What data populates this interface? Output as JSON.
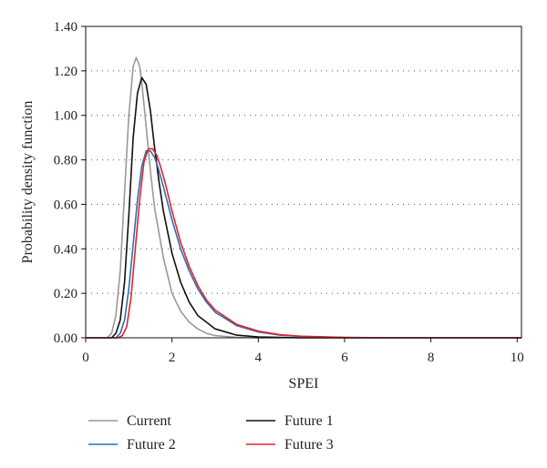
{
  "chart_data": {
    "type": "line",
    "title": "",
    "xlabel": "SPEI",
    "ylabel": "Probability density function",
    "xlim": [
      0,
      10.1
    ],
    "ylim": [
      0,
      1.4
    ],
    "x_ticks": [
      0,
      2,
      4,
      6,
      8,
      10
    ],
    "x_tick_labels": [
      "0",
      "2",
      "4",
      "6",
      "8",
      "10"
    ],
    "y_ticks": [
      0,
      0.2,
      0.4,
      0.6,
      0.8,
      1.0,
      1.2,
      1.4
    ],
    "y_tick_labels": [
      "0.00",
      "0.20",
      "0.40",
      "0.60",
      "0.80",
      "1.00",
      "1.20",
      "1.40"
    ],
    "grid": "horizontal dotted",
    "legend_position": "bottom",
    "series": [
      {
        "name": "Current",
        "color": "#999999",
        "points": [
          [
            0,
            0
          ],
          [
            0.5,
            0
          ],
          [
            0.6,
            0.02
          ],
          [
            0.7,
            0.1
          ],
          [
            0.8,
            0.3
          ],
          [
            0.9,
            0.65
          ],
          [
            1.0,
            1.0
          ],
          [
            1.1,
            1.22
          ],
          [
            1.17,
            1.26
          ],
          [
            1.25,
            1.22
          ],
          [
            1.3,
            1.15
          ],
          [
            1.4,
            0.95
          ],
          [
            1.5,
            0.75
          ],
          [
            1.6,
            0.58
          ],
          [
            1.8,
            0.36
          ],
          [
            2.0,
            0.2
          ],
          [
            2.2,
            0.12
          ],
          [
            2.4,
            0.07
          ],
          [
            2.6,
            0.04
          ],
          [
            2.8,
            0.02
          ],
          [
            3.0,
            0.01
          ],
          [
            3.5,
            0.002
          ],
          [
            4.0,
            0
          ],
          [
            10.1,
            0
          ]
        ]
      },
      {
        "name": "Future 1",
        "color": "#111111",
        "points": [
          [
            0,
            0
          ],
          [
            0.6,
            0
          ],
          [
            0.7,
            0.02
          ],
          [
            0.8,
            0.08
          ],
          [
            0.9,
            0.25
          ],
          [
            1.0,
            0.55
          ],
          [
            1.1,
            0.9
          ],
          [
            1.2,
            1.1
          ],
          [
            1.3,
            1.17
          ],
          [
            1.4,
            1.14
          ],
          [
            1.5,
            1.02
          ],
          [
            1.6,
            0.85
          ],
          [
            1.7,
            0.7
          ],
          [
            1.8,
            0.57
          ],
          [
            2.0,
            0.38
          ],
          [
            2.2,
            0.25
          ],
          [
            2.4,
            0.16
          ],
          [
            2.6,
            0.1
          ],
          [
            2.8,
            0.07
          ],
          [
            3.0,
            0.04
          ],
          [
            3.5,
            0.012
          ],
          [
            4.0,
            0.004
          ],
          [
            5.0,
            0
          ],
          [
            10.1,
            0
          ]
        ]
      },
      {
        "name": "Future 2",
        "color": "#2f6fb0",
        "points": [
          [
            0,
            0
          ],
          [
            0.7,
            0
          ],
          [
            0.8,
            0.02
          ],
          [
            0.9,
            0.08
          ],
          [
            1.0,
            0.22
          ],
          [
            1.1,
            0.42
          ],
          [
            1.2,
            0.62
          ],
          [
            1.3,
            0.77
          ],
          [
            1.4,
            0.84
          ],
          [
            1.5,
            0.84
          ],
          [
            1.6,
            0.81
          ],
          [
            1.7,
            0.75
          ],
          [
            1.8,
            0.68
          ],
          [
            2.0,
            0.53
          ],
          [
            2.2,
            0.4
          ],
          [
            2.4,
            0.3
          ],
          [
            2.6,
            0.22
          ],
          [
            2.8,
            0.16
          ],
          [
            3.0,
            0.115
          ],
          [
            3.5,
            0.055
          ],
          [
            4.0,
            0.026
          ],
          [
            4.5,
            0.012
          ],
          [
            5.0,
            0.006
          ],
          [
            6.0,
            0.001
          ],
          [
            7.0,
            0
          ],
          [
            10.1,
            0
          ]
        ]
      },
      {
        "name": "Future 3",
        "color": "#e3242b",
        "points": [
          [
            0,
            0
          ],
          [
            0.75,
            0
          ],
          [
            0.85,
            0.01
          ],
          [
            0.95,
            0.05
          ],
          [
            1.05,
            0.18
          ],
          [
            1.15,
            0.4
          ],
          [
            1.25,
            0.62
          ],
          [
            1.35,
            0.79
          ],
          [
            1.45,
            0.85
          ],
          [
            1.55,
            0.85
          ],
          [
            1.65,
            0.82
          ],
          [
            1.75,
            0.76
          ],
          [
            1.85,
            0.69
          ],
          [
            2.0,
            0.57
          ],
          [
            2.2,
            0.43
          ],
          [
            2.4,
            0.32
          ],
          [
            2.6,
            0.235
          ],
          [
            2.8,
            0.17
          ],
          [
            3.0,
            0.125
          ],
          [
            3.5,
            0.06
          ],
          [
            4.0,
            0.03
          ],
          [
            4.5,
            0.014
          ],
          [
            5.0,
            0.007
          ],
          [
            6.0,
            0.002
          ],
          [
            7.0,
            0
          ],
          [
            10.1,
            0
          ]
        ]
      }
    ]
  }
}
